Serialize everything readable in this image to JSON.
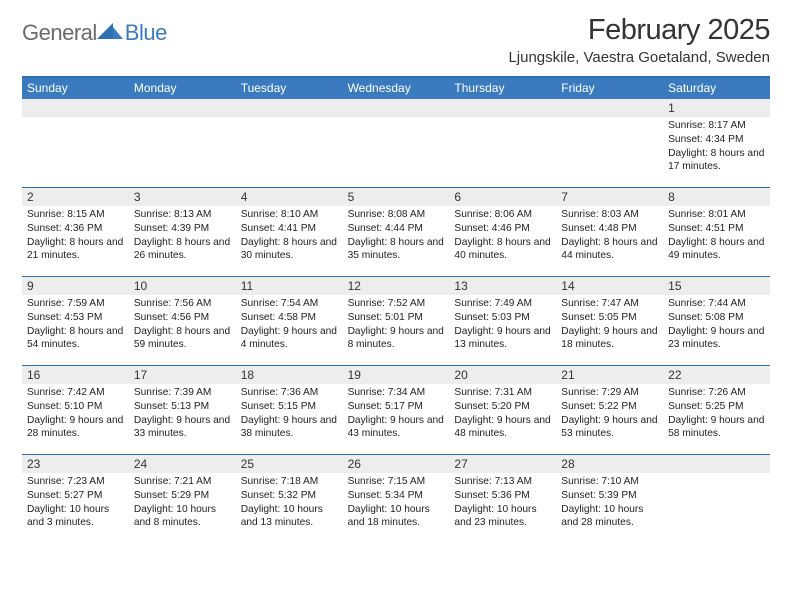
{
  "logo": {
    "general": "General",
    "blue": "Blue"
  },
  "title": "February 2025",
  "location": "Ljungskile, Vaestra Goetaland, Sweden",
  "colors": {
    "header_blue": "#3a7bbf",
    "rule_blue": "#2d6fb3",
    "daynum_bg": "#ededed",
    "text": "#333333",
    "body_text": "#222222",
    "logo_gray": "#6b6b6b"
  },
  "dow": [
    "Sunday",
    "Monday",
    "Tuesday",
    "Wednesday",
    "Thursday",
    "Friday",
    "Saturday"
  ],
  "weeks": [
    [
      {
        "n": "",
        "sunrise": "",
        "sunset": "",
        "daylight": ""
      },
      {
        "n": "",
        "sunrise": "",
        "sunset": "",
        "daylight": ""
      },
      {
        "n": "",
        "sunrise": "",
        "sunset": "",
        "daylight": ""
      },
      {
        "n": "",
        "sunrise": "",
        "sunset": "",
        "daylight": ""
      },
      {
        "n": "",
        "sunrise": "",
        "sunset": "",
        "daylight": ""
      },
      {
        "n": "",
        "sunrise": "",
        "sunset": "",
        "daylight": ""
      },
      {
        "n": "1",
        "sunrise": "Sunrise: 8:17 AM",
        "sunset": "Sunset: 4:34 PM",
        "daylight": "Daylight: 8 hours and 17 minutes."
      }
    ],
    [
      {
        "n": "2",
        "sunrise": "Sunrise: 8:15 AM",
        "sunset": "Sunset: 4:36 PM",
        "daylight": "Daylight: 8 hours and 21 minutes."
      },
      {
        "n": "3",
        "sunrise": "Sunrise: 8:13 AM",
        "sunset": "Sunset: 4:39 PM",
        "daylight": "Daylight: 8 hours and 26 minutes."
      },
      {
        "n": "4",
        "sunrise": "Sunrise: 8:10 AM",
        "sunset": "Sunset: 4:41 PM",
        "daylight": "Daylight: 8 hours and 30 minutes."
      },
      {
        "n": "5",
        "sunrise": "Sunrise: 8:08 AM",
        "sunset": "Sunset: 4:44 PM",
        "daylight": "Daylight: 8 hours and 35 minutes."
      },
      {
        "n": "6",
        "sunrise": "Sunrise: 8:06 AM",
        "sunset": "Sunset: 4:46 PM",
        "daylight": "Daylight: 8 hours and 40 minutes."
      },
      {
        "n": "7",
        "sunrise": "Sunrise: 8:03 AM",
        "sunset": "Sunset: 4:48 PM",
        "daylight": "Daylight: 8 hours and 44 minutes."
      },
      {
        "n": "8",
        "sunrise": "Sunrise: 8:01 AM",
        "sunset": "Sunset: 4:51 PM",
        "daylight": "Daylight: 8 hours and 49 minutes."
      }
    ],
    [
      {
        "n": "9",
        "sunrise": "Sunrise: 7:59 AM",
        "sunset": "Sunset: 4:53 PM",
        "daylight": "Daylight: 8 hours and 54 minutes."
      },
      {
        "n": "10",
        "sunrise": "Sunrise: 7:56 AM",
        "sunset": "Sunset: 4:56 PM",
        "daylight": "Daylight: 8 hours and 59 minutes."
      },
      {
        "n": "11",
        "sunrise": "Sunrise: 7:54 AM",
        "sunset": "Sunset: 4:58 PM",
        "daylight": "Daylight: 9 hours and 4 minutes."
      },
      {
        "n": "12",
        "sunrise": "Sunrise: 7:52 AM",
        "sunset": "Sunset: 5:01 PM",
        "daylight": "Daylight: 9 hours and 8 minutes."
      },
      {
        "n": "13",
        "sunrise": "Sunrise: 7:49 AM",
        "sunset": "Sunset: 5:03 PM",
        "daylight": "Daylight: 9 hours and 13 minutes."
      },
      {
        "n": "14",
        "sunrise": "Sunrise: 7:47 AM",
        "sunset": "Sunset: 5:05 PM",
        "daylight": "Daylight: 9 hours and 18 minutes."
      },
      {
        "n": "15",
        "sunrise": "Sunrise: 7:44 AM",
        "sunset": "Sunset: 5:08 PM",
        "daylight": "Daylight: 9 hours and 23 minutes."
      }
    ],
    [
      {
        "n": "16",
        "sunrise": "Sunrise: 7:42 AM",
        "sunset": "Sunset: 5:10 PM",
        "daylight": "Daylight: 9 hours and 28 minutes."
      },
      {
        "n": "17",
        "sunrise": "Sunrise: 7:39 AM",
        "sunset": "Sunset: 5:13 PM",
        "daylight": "Daylight: 9 hours and 33 minutes."
      },
      {
        "n": "18",
        "sunrise": "Sunrise: 7:36 AM",
        "sunset": "Sunset: 5:15 PM",
        "daylight": "Daylight: 9 hours and 38 minutes."
      },
      {
        "n": "19",
        "sunrise": "Sunrise: 7:34 AM",
        "sunset": "Sunset: 5:17 PM",
        "daylight": "Daylight: 9 hours and 43 minutes."
      },
      {
        "n": "20",
        "sunrise": "Sunrise: 7:31 AM",
        "sunset": "Sunset: 5:20 PM",
        "daylight": "Daylight: 9 hours and 48 minutes."
      },
      {
        "n": "21",
        "sunrise": "Sunrise: 7:29 AM",
        "sunset": "Sunset: 5:22 PM",
        "daylight": "Daylight: 9 hours and 53 minutes."
      },
      {
        "n": "22",
        "sunrise": "Sunrise: 7:26 AM",
        "sunset": "Sunset: 5:25 PM",
        "daylight": "Daylight: 9 hours and 58 minutes."
      }
    ],
    [
      {
        "n": "23",
        "sunrise": "Sunrise: 7:23 AM",
        "sunset": "Sunset: 5:27 PM",
        "daylight": "Daylight: 10 hours and 3 minutes."
      },
      {
        "n": "24",
        "sunrise": "Sunrise: 7:21 AM",
        "sunset": "Sunset: 5:29 PM",
        "daylight": "Daylight: 10 hours and 8 minutes."
      },
      {
        "n": "25",
        "sunrise": "Sunrise: 7:18 AM",
        "sunset": "Sunset: 5:32 PM",
        "daylight": "Daylight: 10 hours and 13 minutes."
      },
      {
        "n": "26",
        "sunrise": "Sunrise: 7:15 AM",
        "sunset": "Sunset: 5:34 PM",
        "daylight": "Daylight: 10 hours and 18 minutes."
      },
      {
        "n": "27",
        "sunrise": "Sunrise: 7:13 AM",
        "sunset": "Sunset: 5:36 PM",
        "daylight": "Daylight: 10 hours and 23 minutes."
      },
      {
        "n": "28",
        "sunrise": "Sunrise: 7:10 AM",
        "sunset": "Sunset: 5:39 PM",
        "daylight": "Daylight: 10 hours and 28 minutes."
      },
      {
        "n": "",
        "sunrise": "",
        "sunset": "",
        "daylight": ""
      }
    ]
  ]
}
